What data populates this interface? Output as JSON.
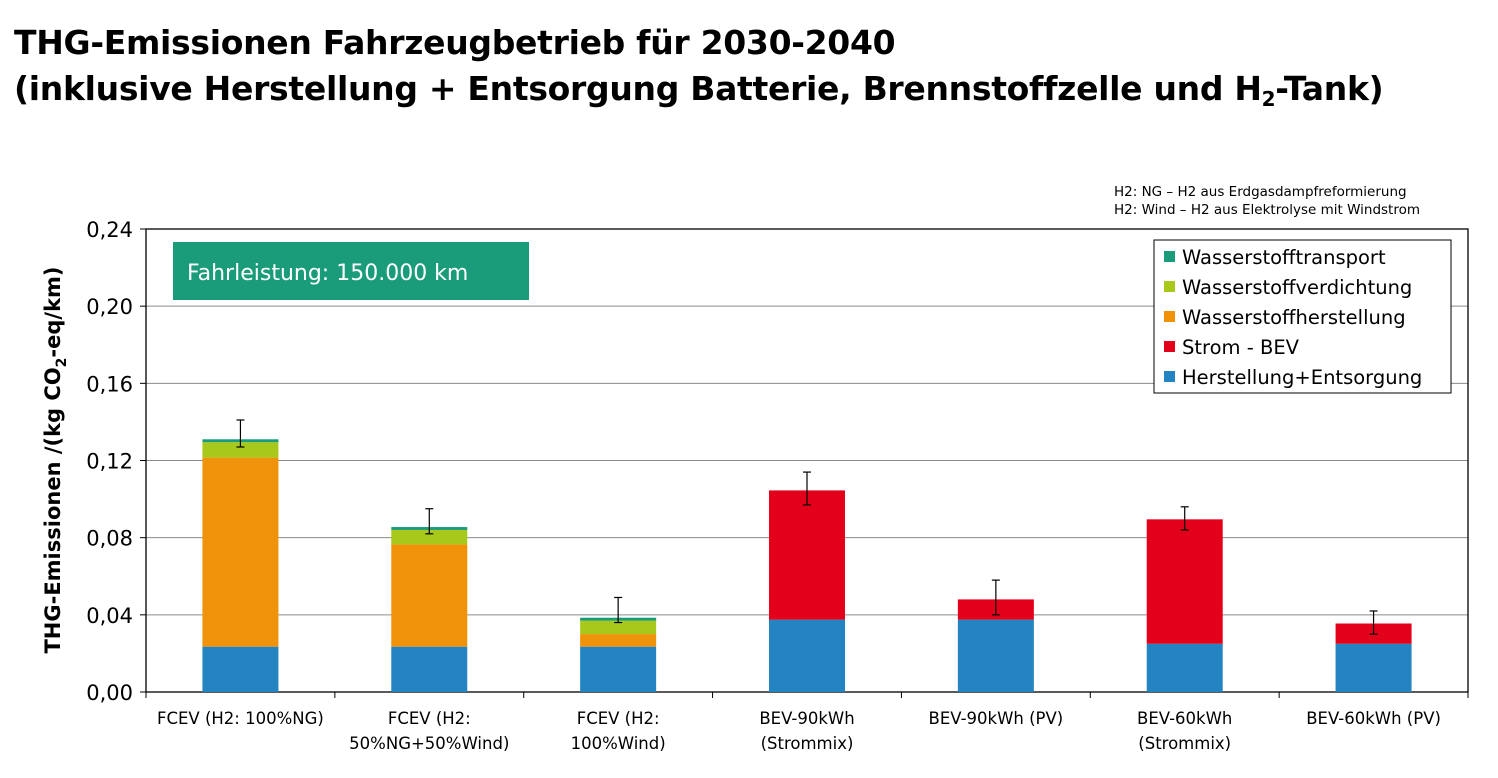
{
  "title": {
    "line1": "THG-Emissionen Fahrzeugbetrieb für 2030-2040",
    "line2_prefix": "(inklusive Herstellung + Entsorgung Batterie, Brennstoffzelle und H",
    "line2_sub": "2",
    "line2_suffix": "-Tank)"
  },
  "notes": [
    "H2: NG – H2 aus Erdgasdampfreformierung",
    "H2: Wind – H2 aus Elektrolyse mit Windstrom"
  ],
  "badge": {
    "text": "Fahrleistung: 150.000 km",
    "color": "#1a9b7a"
  },
  "colors": {
    "Wasserstofftransport": "#1a9b7a",
    "Wasserstoffverdichtung": "#a8c81c",
    "Wasserstoffherstellung": "#f0920a",
    "Strom - BEV": "#e2001a",
    "Herstellung+Entsorgung": "#2484c2"
  },
  "chart_data": {
    "type": "bar",
    "stacked": true,
    "ylabel_prefix": "THG-Emissionen /(kg CO",
    "ylabel_sub": "2",
    "ylabel_suffix": "-eq/km)",
    "ylim": [
      0,
      0.24
    ],
    "yticks": [
      "0,00",
      "0,04",
      "0,08",
      "0,12",
      "0,16",
      "0,20",
      "0,24"
    ],
    "grid": true,
    "legend_position": "top-right",
    "legend": [
      "Wasserstofftransport",
      "Wasserstoffverdichtung",
      "Wasserstoffherstellung",
      "Strom - BEV",
      "Herstellung+Entsorgung"
    ],
    "categories": [
      [
        "FCEV (H2: 100%NG)"
      ],
      [
        "FCEV (H2:",
        "50%NG+50%Wind)"
      ],
      [
        "FCEV (H2:",
        "100%Wind)"
      ],
      [
        "BEV-90kWh",
        "(Strommix)"
      ],
      [
        "BEV-90kWh (PV)"
      ],
      [
        "BEV-60kWh",
        "(Strommix)"
      ],
      [
        "BEV-60kWh (PV)"
      ]
    ],
    "series": [
      {
        "name": "Herstellung+Entsorgung",
        "values": [
          0.0235,
          0.0235,
          0.0235,
          0.0375,
          0.0375,
          0.025,
          0.025
        ]
      },
      {
        "name": "Strom - BEV",
        "values": [
          0,
          0,
          0,
          0.067,
          0.0105,
          0.0645,
          0.0105
        ]
      },
      {
        "name": "Wasserstoffherstellung",
        "values": [
          0.098,
          0.053,
          0.0065,
          0,
          0,
          0,
          0
        ]
      },
      {
        "name": "Wasserstoffverdichtung",
        "values": [
          0.008,
          0.0075,
          0.007,
          0,
          0,
          0,
          0
        ]
      },
      {
        "name": "Wasserstofftransport",
        "values": [
          0.0015,
          0.0015,
          0.0015,
          0,
          0,
          0,
          0
        ]
      }
    ],
    "error_bars": {
      "low": [
        0.127,
        0.082,
        0.036,
        0.097,
        0.04,
        0.084,
        0.03
      ],
      "high": [
        0.141,
        0.095,
        0.049,
        0.114,
        0.058,
        0.096,
        0.042
      ]
    }
  }
}
